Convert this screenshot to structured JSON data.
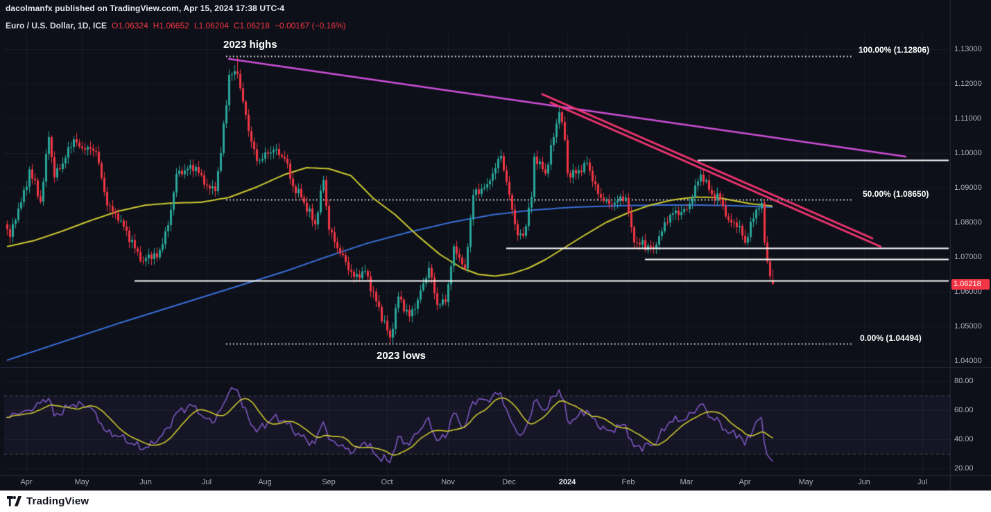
{
  "header": {
    "attribution": "dacolmanfx published on TradingView.com, Apr 15, 2024 17:38 UTC-4",
    "symbol": "Euro / U.S. Dollar, 1D, ICE",
    "ohlc": {
      "open": "O1.06324",
      "high": "H1.06652",
      "low": "L1.06204",
      "close": "C1.06218",
      "change": "−0.00167 (−0.16%)"
    }
  },
  "footer": {
    "brand": "TradingView"
  },
  "colors": {
    "background": "#0d1018",
    "up_candle": "#2aa79b",
    "down_candle": "#f23645",
    "ma_fast": "#cdca31",
    "ma_slow": "#3a6fd8",
    "trend_magenta": "#cf4fd8",
    "trend_pink": "#f23670",
    "rsi_line": "#7e57c2",
    "rsi_ma": "#cdca31",
    "white_level": "#ffffff",
    "badge": "#f23645",
    "axis_text": "#aeb3c0"
  },
  "chart_data": {
    "type": "candlestick",
    "symbol": "EURUSD",
    "timeframe": "1D",
    "exchange": "ICE",
    "days": 276,
    "last_price": 1.06218,
    "last_price_label": "1.06218",
    "last_candle": {
      "o": 1.06324,
      "h": 1.06652,
      "l": 1.06204,
      "c": 1.06218
    },
    "extreme_high": {
      "day": 83,
      "price": 1.1276
    },
    "extreme_low": {
      "day": 138,
      "price": 1.0448
    },
    "price_axis": {
      "ticks": [
        "1.13000",
        "1.12000",
        "1.11000",
        "1.10000",
        "1.09000",
        "1.08000",
        "1.07000",
        "1.06000",
        "1.05000",
        "1.04000"
      ]
    },
    "time_axis": {
      "months": [
        {
          "label": "Apr",
          "day": 7
        },
        {
          "label": "May",
          "day": 27
        },
        {
          "label": "Jun",
          "day": 50
        },
        {
          "label": "Jul",
          "day": 72
        },
        {
          "label": "Aug",
          "day": 93
        },
        {
          "label": "Sep",
          "day": 116
        },
        {
          "label": "Oct",
          "day": 137
        },
        {
          "label": "Nov",
          "day": 159
        },
        {
          "label": "Dec",
          "day": 181
        },
        {
          "label": "2024",
          "day": 202,
          "em": true
        },
        {
          "label": "Feb",
          "day": 224
        },
        {
          "label": "Mar",
          "day": 245
        },
        {
          "label": "Apr",
          "day": 266
        },
        {
          "label": "May",
          "day": 288
        },
        {
          "label": "Jun",
          "day": 309
        },
        {
          "label": "Jul",
          "day": 330
        }
      ]
    },
    "price_anchors": [
      [
        0,
        1.078
      ],
      [
        1,
        1.0758
      ],
      [
        4,
        1.084
      ],
      [
        7,
        1.0903
      ],
      [
        8,
        1.0953
      ],
      [
        12,
        1.086
      ],
      [
        15,
        1.1046
      ],
      [
        17,
        1.093
      ],
      [
        19,
        1.0954
      ],
      [
        24,
        1.104
      ],
      [
        26,
        1.1019
      ],
      [
        30,
        1.1013
      ],
      [
        32,
        1.1004
      ],
      [
        36,
        1.0849
      ],
      [
        41,
        1.0805
      ],
      [
        46,
        1.0725
      ],
      [
        49,
        1.0688
      ],
      [
        51,
        1.0707
      ],
      [
        54,
        1.0699
      ],
      [
        58,
        1.0792
      ],
      [
        61,
        1.094
      ],
      [
        65,
        1.0955
      ],
      [
        68,
        1.096
      ],
      [
        71,
        1.0909
      ],
      [
        75,
        1.089
      ],
      [
        77,
        1.1
      ],
      [
        80,
        1.1226
      ],
      [
        83,
        1.1228
      ],
      [
        87,
        1.1064
      ],
      [
        90,
        1.0977
      ],
      [
        96,
        1.1009
      ],
      [
        100,
        1.0984
      ],
      [
        103,
        1.0904
      ],
      [
        106,
        1.0872
      ],
      [
        111,
        1.0794
      ],
      [
        114,
        1.0922
      ],
      [
        116,
        1.0779
      ],
      [
        119,
        1.0726
      ],
      [
        125,
        1.0643
      ],
      [
        129,
        1.066
      ],
      [
        133,
        1.0572
      ],
      [
        138,
        1.0467
      ],
      [
        141,
        1.0586
      ],
      [
        145,
        1.0529
      ],
      [
        148,
        1.0577
      ],
      [
        152,
        1.0669
      ],
      [
        155,
        1.0562
      ],
      [
        158,
        1.057
      ],
      [
        161,
        1.0731
      ],
      [
        165,
        1.0667
      ],
      [
        168,
        1.0879
      ],
      [
        173,
        1.091
      ],
      [
        178,
        1.0992
      ],
      [
        181,
        1.0879
      ],
      [
        184,
        1.0763
      ],
      [
        186,
        1.0761
      ],
      [
        189,
        1.0874
      ],
      [
        190,
        1.099
      ],
      [
        194,
        1.0941
      ],
      [
        199,
        1.1118
      ],
      [
        201,
        1.1038
      ],
      [
        202,
        1.0942
      ],
      [
        205,
        1.0941
      ],
      [
        209,
        1.0973
      ],
      [
        213,
        1.0882
      ],
      [
        217,
        1.0853
      ],
      [
        223,
        1.0871
      ],
      [
        225,
        1.0786
      ],
      [
        226,
        1.0742
      ],
      [
        233,
        1.0727
      ],
      [
        239,
        1.0822
      ],
      [
        245,
        1.0838
      ],
      [
        250,
        1.0938
      ],
      [
        254,
        1.0881
      ],
      [
        257,
        1.0866
      ],
      [
        260,
        1.0808
      ],
      [
        264,
        1.079
      ],
      [
        266,
        1.0741
      ],
      [
        270,
        1.0837
      ],
      [
        272,
        1.0857
      ],
      [
        273,
        1.0742
      ],
      [
        275,
        1.0644
      ],
      [
        276,
        1.0622
      ]
    ],
    "ma_fast": {
      "name": "MA fast (yellow)",
      "points": [
        [
          0,
          1.073
        ],
        [
          10,
          1.0748
        ],
        [
          20,
          1.0775
        ],
        [
          30,
          1.0805
        ],
        [
          40,
          1.0832
        ],
        [
          50,
          1.085
        ],
        [
          60,
          1.0856
        ],
        [
          70,
          1.0858
        ],
        [
          80,
          1.0872
        ],
        [
          90,
          1.0902
        ],
        [
          100,
          1.0938
        ],
        [
          108,
          1.0958
        ],
        [
          116,
          1.0955
        ],
        [
          124,
          1.0935
        ],
        [
          132,
          1.087
        ],
        [
          140,
          1.0822
        ],
        [
          148,
          1.0762
        ],
        [
          156,
          1.0708
        ],
        [
          164,
          1.0668
        ],
        [
          170,
          1.065
        ],
        [
          176,
          1.0645
        ],
        [
          182,
          1.0652
        ],
        [
          188,
          1.0668
        ],
        [
          194,
          1.0692
        ],
        [
          200,
          1.0722
        ],
        [
          208,
          1.0762
        ],
        [
          216,
          1.08
        ],
        [
          224,
          1.0828
        ],
        [
          232,
          1.085
        ],
        [
          240,
          1.0865
        ],
        [
          248,
          1.0873
        ],
        [
          256,
          1.0872
        ],
        [
          262,
          1.0863
        ],
        [
          268,
          1.0854
        ],
        [
          276,
          1.0847
        ]
      ]
    },
    "ma_slow": {
      "name": "MA slow (blue)",
      "points": [
        [
          0,
          1.0402
        ],
        [
          20,
          1.0455
        ],
        [
          40,
          1.0508
        ],
        [
          60,
          1.0558
        ],
        [
          80,
          1.0608
        ],
        [
          100,
          1.0658
        ],
        [
          115,
          1.07
        ],
        [
          130,
          1.074
        ],
        [
          145,
          1.0772
        ],
        [
          160,
          1.08
        ],
        [
          175,
          1.0822
        ],
        [
          190,
          1.0836
        ],
        [
          205,
          1.0844
        ],
        [
          220,
          1.0848
        ],
        [
          235,
          1.085
        ],
        [
          250,
          1.085
        ],
        [
          263,
          1.0848
        ],
        [
          276,
          1.0844
        ]
      ]
    },
    "fib_levels": [
      {
        "pct": "100.00%",
        "price": 1.12806,
        "label": "100.00% (1.12806)",
        "d1": 79,
        "d2": 305
      },
      {
        "pct": "50.00%",
        "price": 1.0865,
        "label": "50.00% (1.08650)",
        "d1": 79,
        "d2": 305
      },
      {
        "pct": "0.00%",
        "price": 1.04494,
        "label": "0.00% (1.04494)",
        "d1": 79,
        "d2": 305
      }
    ],
    "h_lines": [
      {
        "price": 1.098,
        "d1": 249,
        "d2": 340
      },
      {
        "price": 1.0726,
        "d1": 180,
        "d2": 340
      },
      {
        "price": 1.0695,
        "d1": 230,
        "d2": 340
      },
      {
        "price": 1.0632,
        "d1": 46,
        "d2": 340
      }
    ],
    "trendlines": [
      {
        "name": "magenta-resistance",
        "d1": 80,
        "p1": 1.1272,
        "d2": 324,
        "p2": 1.099,
        "color": "#cf4fd8",
        "width": 2.5
      },
      {
        "name": "pink-channel-upper",
        "d1": 193,
        "p1": 1.117,
        "d2": 312,
        "p2": 1.0754,
        "color": "#f23670",
        "width": 3
      },
      {
        "name": "pink-channel-lower",
        "d1": 196,
        "p1": 1.1146,
        "d2": 315,
        "p2": 1.073,
        "color": "#f23670",
        "width": 3
      }
    ],
    "annotations": [
      {
        "text": "2023 highs"
      },
      {
        "text": "2023 lows"
      }
    ],
    "rsi": {
      "name": "RSI",
      "ticks": [
        "80.00",
        "60.00",
        "40.00",
        "20.00"
      ],
      "bands": [
        70,
        30
      ],
      "anchors": [
        [
          0,
          55
        ],
        [
          4,
          57
        ],
        [
          8,
          60
        ],
        [
          15,
          68
        ],
        [
          17,
          56
        ],
        [
          24,
          64
        ],
        [
          30,
          62
        ],
        [
          36,
          45
        ],
        [
          41,
          42
        ],
        [
          46,
          36
        ],
        [
          49,
          33
        ],
        [
          54,
          38
        ],
        [
          58,
          48
        ],
        [
          61,
          58
        ],
        [
          65,
          62
        ],
        [
          68,
          63
        ],
        [
          71,
          55
        ],
        [
          75,
          52
        ],
        [
          80,
          72
        ],
        [
          83,
          74
        ],
        [
          87,
          55
        ],
        [
          90,
          45
        ],
        [
          96,
          55
        ],
        [
          100,
          53
        ],
        [
          103,
          46
        ],
        [
          106,
          42
        ],
        [
          111,
          37
        ],
        [
          114,
          52
        ],
        [
          116,
          40
        ],
        [
          119,
          36
        ],
        [
          125,
          31
        ],
        [
          129,
          38
        ],
        [
          133,
          29
        ],
        [
          138,
          24
        ],
        [
          141,
          42
        ],
        [
          145,
          36
        ],
        [
          148,
          44
        ],
        [
          152,
          55
        ],
        [
          155,
          39
        ],
        [
          158,
          41
        ],
        [
          161,
          58
        ],
        [
          165,
          48
        ],
        [
          168,
          66
        ],
        [
          173,
          67
        ],
        [
          178,
          72
        ],
        [
          181,
          56
        ],
        [
          184,
          44
        ],
        [
          186,
          44
        ],
        [
          189,
          57
        ],
        [
          190,
          66
        ],
        [
          194,
          60
        ],
        [
          199,
          74
        ],
        [
          201,
          66
        ],
        [
          202,
          53
        ],
        [
          205,
          54
        ],
        [
          209,
          60
        ],
        [
          213,
          49
        ],
        [
          217,
          46
        ],
        [
          223,
          50
        ],
        [
          225,
          40
        ],
        [
          226,
          35
        ],
        [
          233,
          36
        ],
        [
          239,
          52
        ],
        [
          245,
          54
        ],
        [
          250,
          64
        ],
        [
          254,
          55
        ],
        [
          257,
          52
        ],
        [
          260,
          44
        ],
        [
          264,
          43
        ],
        [
          266,
          36
        ],
        [
          270,
          52
        ],
        [
          272,
          55
        ],
        [
          273,
          38
        ],
        [
          275,
          27
        ],
        [
          276,
          25
        ]
      ]
    }
  }
}
